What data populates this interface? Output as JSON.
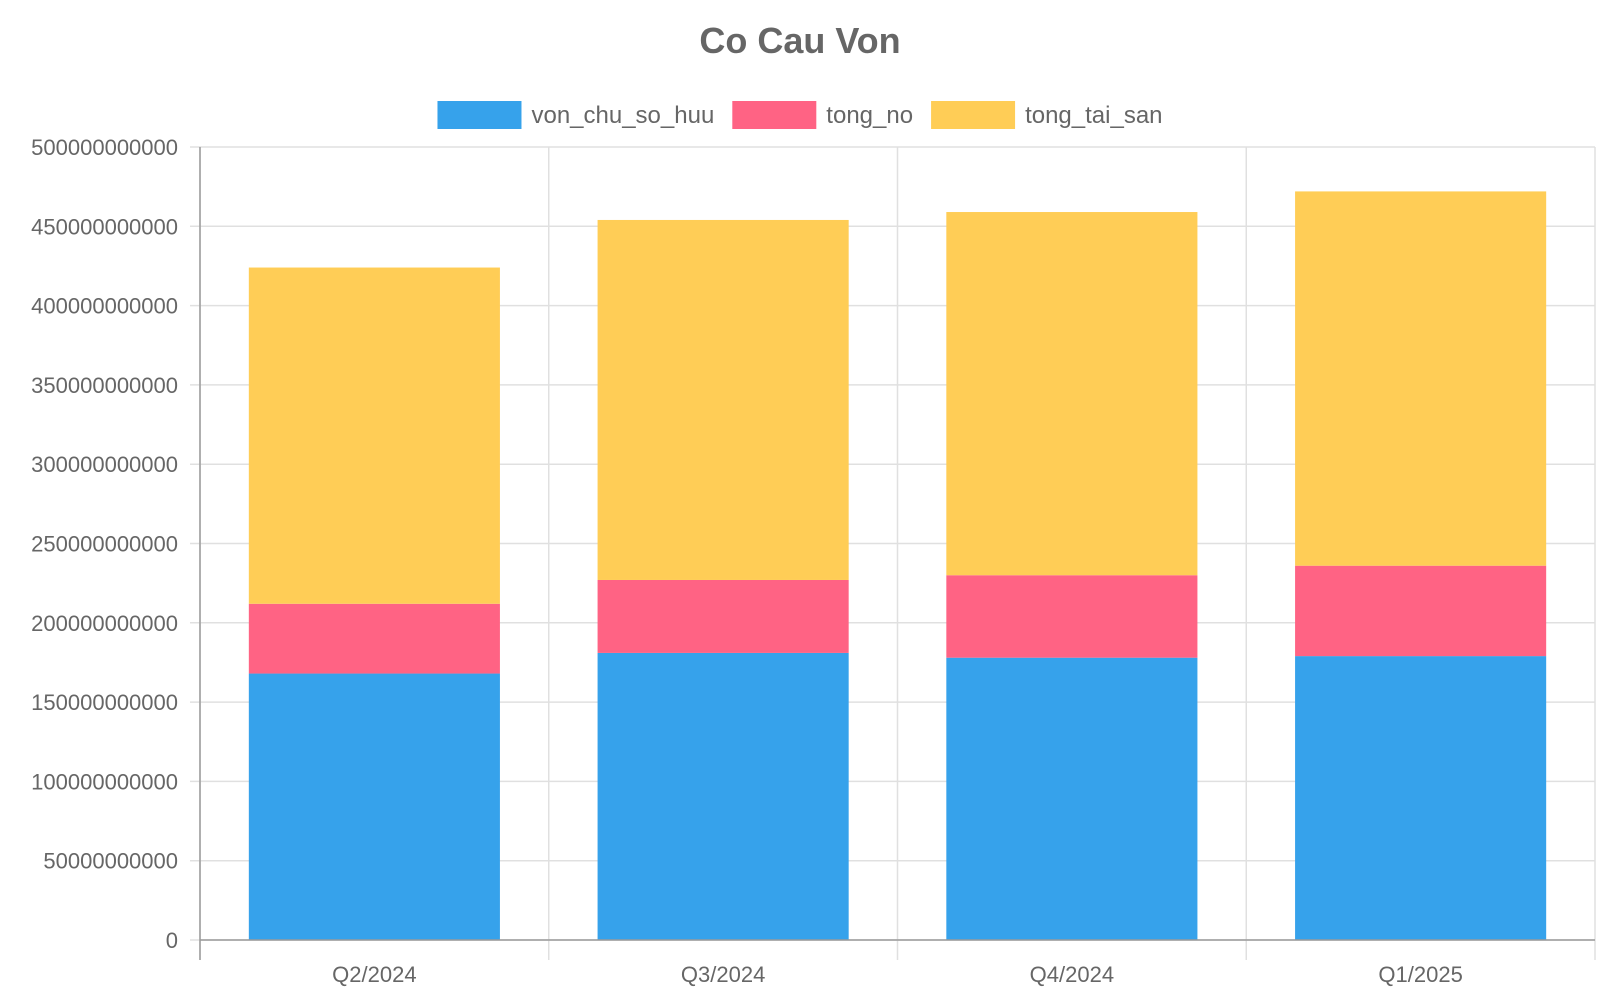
{
  "chart_data": {
    "type": "bar",
    "stacked": true,
    "title": "Co Cau Von",
    "legend_position": "top",
    "grid": true,
    "categories": [
      "Q2/2024",
      "Q3/2024",
      "Q4/2024",
      "Q1/2025"
    ],
    "ylim": [
      0,
      500000000000
    ],
    "yticks": [
      "0",
      "50000000000",
      "100000000000",
      "150000000000",
      "200000000000",
      "250000000000",
      "300000000000",
      "350000000000",
      "400000000000",
      "450000000000",
      "500000000000"
    ],
    "series": [
      {
        "name": "von_chu_so_huu",
        "color": "#36a2eb",
        "values": [
          168000000000,
          181000000000,
          178000000000,
          179000000000
        ]
      },
      {
        "name": "tong_no",
        "color": "#ff6384",
        "values": [
          44000000000,
          46000000000,
          52000000000,
          57000000000
        ]
      },
      {
        "name": "tong_tai_san",
        "color": "#ffcd56",
        "values": [
          212000000000,
          227000000000,
          229000000000,
          236000000000
        ]
      }
    ]
  }
}
